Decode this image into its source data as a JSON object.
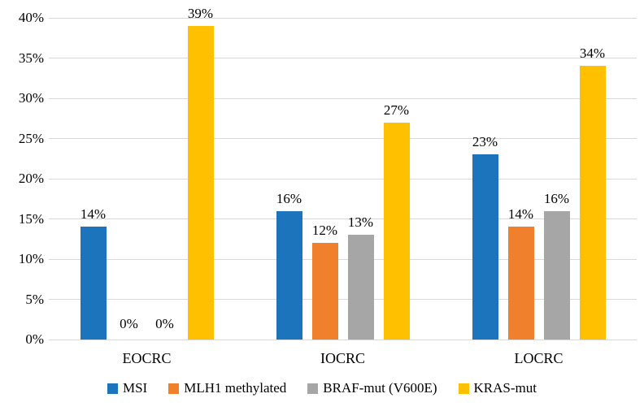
{
  "figure": {
    "background": "#FFFFFF",
    "gridline_color": "#D9D9D9",
    "text_color": "#000000"
  },
  "chart_data": {
    "type": "bar",
    "title": "",
    "xlabel": "",
    "ylabel": "",
    "categories": [
      "EOCRC",
      "IOCRC",
      "LOCRC"
    ],
    "series": [
      {
        "name": "MSI",
        "color": "#1C75BC",
        "values": [
          14,
          16,
          23
        ]
      },
      {
        "name": "MLH1 methylated",
        "color": "#F0802C",
        "values": [
          0,
          12,
          14
        ]
      },
      {
        "name": "BRAF-mut (V600E)",
        "color": "#A6A6A6",
        "values": [
          0,
          13,
          16
        ]
      },
      {
        "name": "KRAS-mut",
        "color": "#FFC000",
        "values": [
          39,
          27,
          34
        ]
      }
    ],
    "value_labels": [
      [
        "14%",
        "0%",
        "0%",
        "39%"
      ],
      [
        "16%",
        "12%",
        "13%",
        "27%"
      ],
      [
        "23%",
        "14%",
        "16%",
        "34%"
      ]
    ],
    "ylim": [
      0,
      40
    ],
    "ytick_step": 5,
    "ytick_labels": [
      "0%",
      "5%",
      "10%",
      "15%",
      "20%",
      "25%",
      "30%",
      "35%",
      "40%"
    ],
    "grid": true,
    "legend_position": "bottom",
    "legend_labels": [
      "MSI",
      "MLH1 methylated",
      "BRAF-mut (V600E)",
      "KRAS-mut"
    ]
  }
}
